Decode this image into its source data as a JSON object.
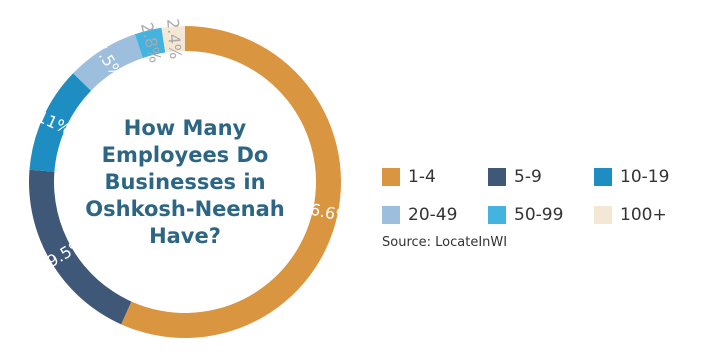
{
  "chart_data": {
    "type": "donut",
    "title": "How Many Employees Do Businesses in Oshkosh-Neenah Have?",
    "title_lines": [
      "How Many",
      "Employees Do",
      "Businesses in",
      "Oshkosh-Neenah",
      "Have?"
    ],
    "categories": [
      "1-4",
      "5-9",
      "10-19",
      "20-49",
      "50-99",
      "100+"
    ],
    "values": [
      56.6,
      19.5,
      11,
      7.5,
      2.8,
      2.4
    ],
    "labels": [
      "56.6%",
      "19.5%",
      "11%",
      "7.5%",
      "2.8%",
      "2.4%"
    ],
    "colors": [
      "#D9953F",
      "#3F5878",
      "#1E8EC2",
      "#9DBEDC",
      "#45B3DF",
      "#F4E8D4"
    ],
    "label_colors": [
      "#ffffff",
      "#ffffff",
      "#ffffff",
      "#ffffff",
      "#aaaaaa",
      "#aaaaaa"
    ],
    "title_color": "#2D6684",
    "legend_placement": "right"
  },
  "source": "Source: LocateInWI"
}
